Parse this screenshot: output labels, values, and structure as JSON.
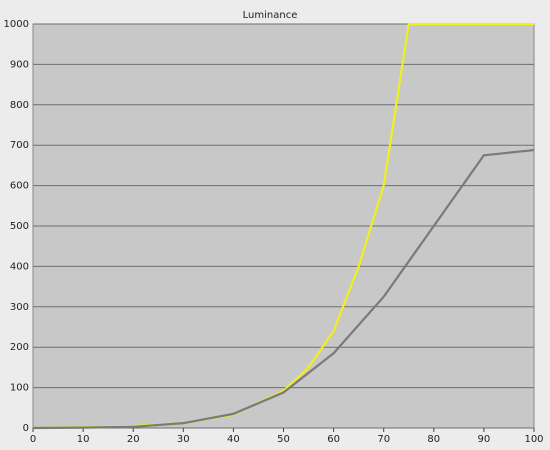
{
  "chart_data": {
    "type": "line",
    "title": "Luminance",
    "series": [
      {
        "color": "#f0f020",
        "x": [
          0,
          10,
          20,
          30,
          40,
          50,
          55,
          60,
          65,
          70,
          72.5,
          75,
          80,
          90,
          100
        ],
        "values": [
          0,
          2,
          5,
          12,
          33,
          92,
          150,
          240,
          400,
          600,
          800,
          1000,
          1000,
          1000,
          1000
        ]
      },
      {
        "color": "#7a7a7a",
        "x": [
          0,
          10,
          20,
          30,
          40,
          50,
          60,
          70,
          80,
          90,
          100
        ],
        "values": [
          0,
          1,
          3,
          12,
          35,
          88,
          185,
          325,
          500,
          675,
          688
        ]
      }
    ],
    "xlim": [
      0,
      100
    ],
    "xticks": [
      0,
      10,
      20,
      30,
      40,
      50,
      60,
      70,
      80,
      90,
      100
    ],
    "ylim": [
      0,
      1000
    ],
    "yticks": [
      0,
      100,
      200,
      300,
      400,
      500,
      600,
      700,
      800,
      900,
      1000
    ],
    "grid": true
  }
}
